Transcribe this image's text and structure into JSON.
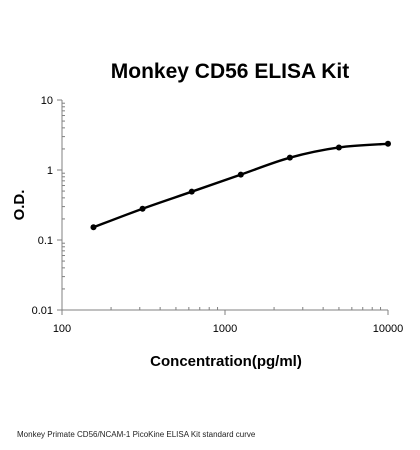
{
  "caption": "Monkey Primate CD56/NCAM-1 PicoKine ELISA Kit standard curve",
  "chart_data": {
    "type": "line",
    "title": "Monkey CD56 ELISA Kit",
    "xlabel": "Concentration(pg/ml)",
    "ylabel": "O.D.",
    "x_scale": "log",
    "y_scale": "log",
    "xlim": [
      100,
      10000
    ],
    "ylim": [
      0.01,
      10
    ],
    "x_ticks": [
      "100",
      "1000",
      "10000"
    ],
    "y_ticks": [
      "0.01",
      "0.1",
      "1",
      "10"
    ],
    "grid": false,
    "legend": "none",
    "line_color": "#000000",
    "series": [
      {
        "x": [
          156,
          312,
          625,
          1250,
          2500,
          5000,
          10000
        ],
        "y": [
          0.152,
          0.28,
          0.49,
          0.86,
          1.5,
          2.1,
          2.37
        ]
      }
    ]
  }
}
